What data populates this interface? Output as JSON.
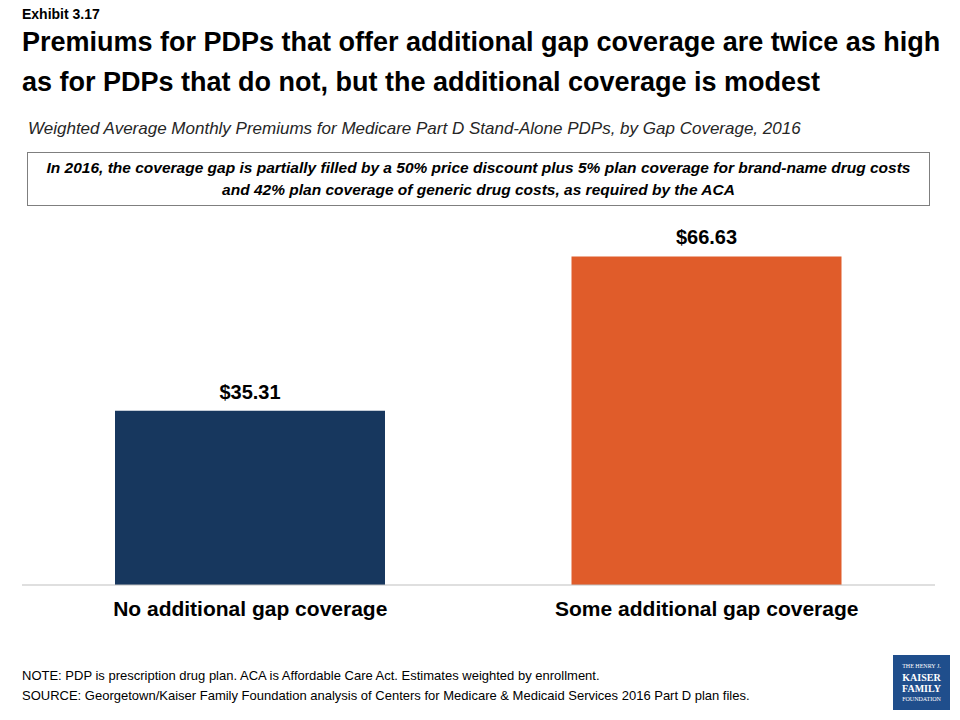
{
  "chart_data": {
    "type": "bar",
    "label": "Exhibit 3.17",
    "title": "Premiums for PDPs that offer additional gap coverage are twice as high as for PDPs that do not, but the additional coverage is modest",
    "subtitle": "Weighted Average Monthly Premiums for Medicare Part D Stand-Alone PDPs, by Gap Coverage, 2016",
    "annotation": "In 2016, the coverage gap is partially filled by a 50% price discount plus 5% plan coverage for brand-name drug costs and 42% plan coverage of generic drug costs, as required by the ACA",
    "note": "NOTE: PDP is prescription drug plan. ACA is Affordable Care Act. Estimates weighted by enrollment.",
    "source": "SOURCE: Georgetown/Kaiser Family Foundation analysis of Centers for Medicare & Medicaid Services 2016 Part D plan files.",
    "logo": [
      "THE HENRY J.",
      "KAISER",
      "FAMILY",
      "FOUNDATION"
    ],
    "categories": [
      "No additional gap coverage",
      "Some additional gap coverage"
    ],
    "values": [
      35.31,
      66.63
    ],
    "value_labels": [
      "$35.31",
      "$66.63"
    ],
    "colors": [
      "#17375e",
      "#e05c2a"
    ],
    "ylim": [
      0,
      73
    ],
    "grid": false,
    "data_labels": true,
    "tick_labels": "x"
  }
}
